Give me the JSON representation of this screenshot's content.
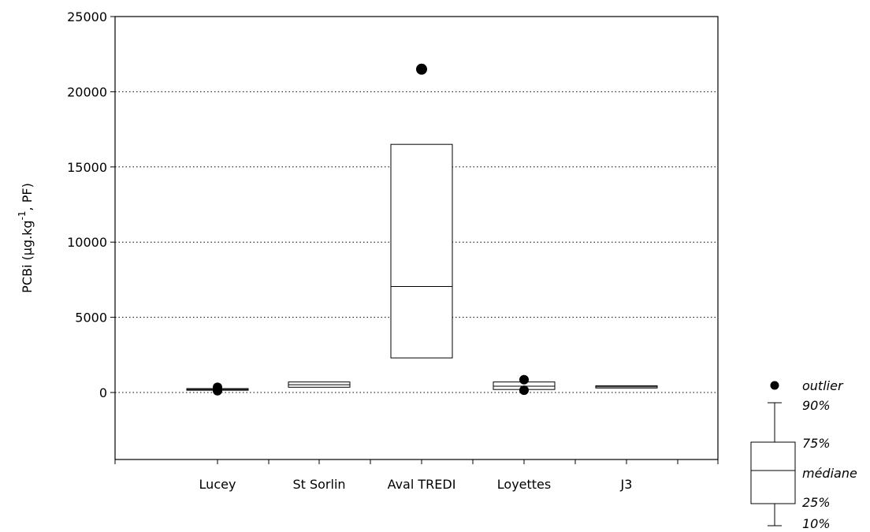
{
  "chart_data": {
    "type": "box",
    "ylabel": "PCBi (µg.kg-1, PF)",
    "ylabel_parts": {
      "main": "PCBi (µg.kg",
      "superscript": "-1",
      "suffix": ", PF)"
    },
    "ylim": [
      -4500,
      25000
    ],
    "yticks": [
      0,
      5000,
      10000,
      15000,
      20000,
      25000
    ],
    "ytick_labels": [
      "0",
      "5000",
      "10000",
      "15000",
      "20000",
      "25000"
    ],
    "grid": "horizontal-dotted",
    "categories": [
      "Lucey",
      "St Sorlin",
      "Aval TREDI",
      "Loyettes",
      "J3"
    ],
    "boxes": [
      {
        "category": "Lucey",
        "p25": 150,
        "median": 200,
        "p75": 260,
        "p10": 150,
        "p90": 260,
        "outliers": [
          120,
          350
        ]
      },
      {
        "category": "St Sorlin",
        "p25": 350,
        "median": 520,
        "p75": 700,
        "p10": 350,
        "p90": 700,
        "outliers": []
      },
      {
        "category": "Aval TREDI",
        "p25": 2300,
        "median": 7050,
        "p75": 16500,
        "p10": 2300,
        "p90": 16500,
        "outliers": [
          21500
        ]
      },
      {
        "category": "Loyettes",
        "p25": 200,
        "median": 420,
        "p75": 700,
        "p10": 200,
        "p90": 750,
        "outliers": [
          150,
          850
        ]
      },
      {
        "category": "J3",
        "p25": 300,
        "median": 380,
        "p75": 450,
        "p10": 300,
        "p90": 450,
        "outliers": []
      }
    ],
    "legend": {
      "position": "bottom-right",
      "outlier": "outlier",
      "p90": "90%",
      "p75": "75%",
      "median": "médiane",
      "p25": "25%",
      "p10": "10%"
    }
  }
}
